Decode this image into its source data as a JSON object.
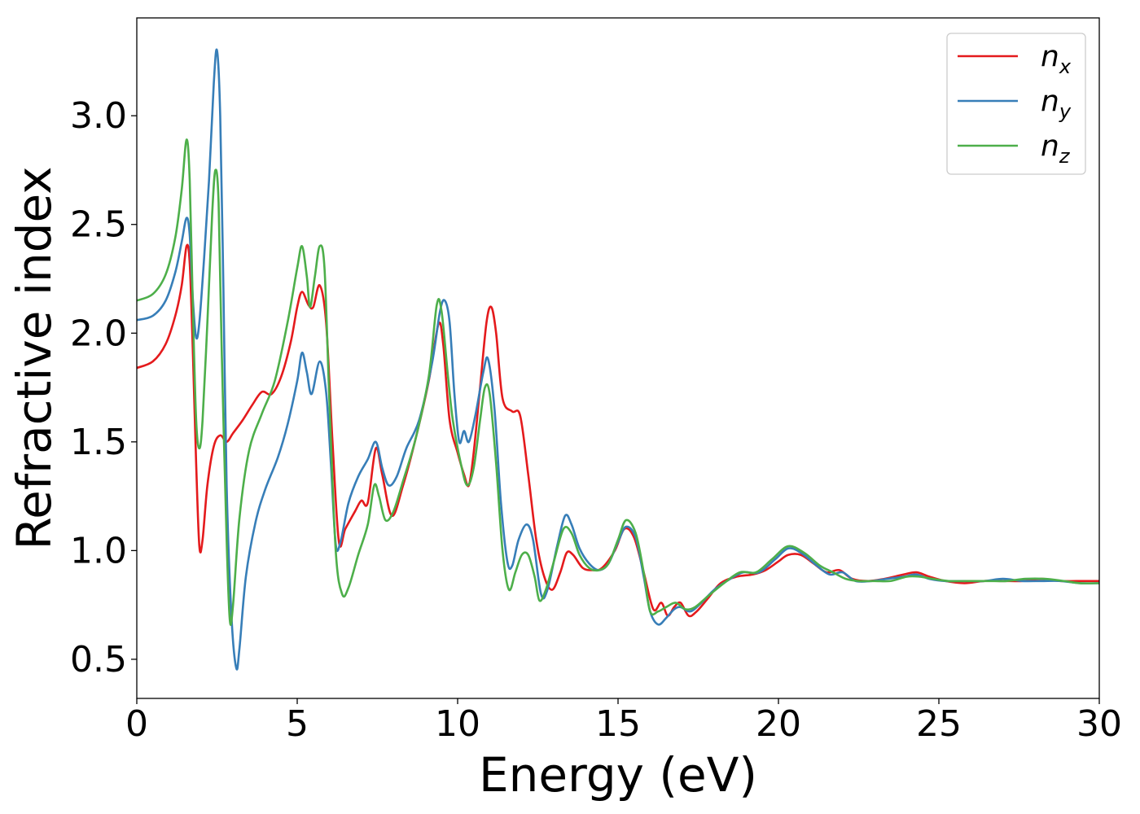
{
  "chart_data": {
    "type": "line",
    "title": "",
    "xlabel": "Energy (eV)",
    "ylabel": "Refractive index",
    "xlim": [
      0,
      30
    ],
    "ylim": [
      0.32,
      3.45
    ],
    "xticks": [
      0,
      5,
      10,
      15,
      20,
      25,
      30
    ],
    "xtick_labels": [
      "0",
      "5",
      "10",
      "15",
      "20",
      "25",
      "30"
    ],
    "yticks": [
      0.5,
      1.0,
      1.5,
      2.0,
      2.5,
      3.0
    ],
    "ytick_labels": [
      "0.5",
      "1.0",
      "1.5",
      "2.0",
      "2.5",
      "3.0"
    ],
    "grid": false,
    "legend_position": "upper-right",
    "series": [
      {
        "name": "n",
        "subscript": "x",
        "color": "#e41a1c",
        "points": [
          [
            0,
            1.84
          ],
          [
            0.5,
            1.87
          ],
          [
            0.9,
            1.95
          ],
          [
            1.2,
            2.08
          ],
          [
            1.4,
            2.22
          ],
          [
            1.55,
            2.4
          ],
          [
            1.65,
            2.32
          ],
          [
            1.75,
            1.9
          ],
          [
            1.85,
            1.4
          ],
          [
            1.95,
            1.02
          ],
          [
            2.05,
            1.05
          ],
          [
            2.2,
            1.3
          ],
          [
            2.4,
            1.48
          ],
          [
            2.6,
            1.53
          ],
          [
            2.8,
            1.5
          ],
          [
            3.0,
            1.54
          ],
          [
            3.3,
            1.6
          ],
          [
            3.6,
            1.67
          ],
          [
            3.9,
            1.73
          ],
          [
            4.2,
            1.72
          ],
          [
            4.5,
            1.8
          ],
          [
            4.8,
            1.96
          ],
          [
            5.0,
            2.12
          ],
          [
            5.15,
            2.19
          ],
          [
            5.35,
            2.13
          ],
          [
            5.5,
            2.12
          ],
          [
            5.7,
            2.22
          ],
          [
            5.9,
            2.05
          ],
          [
            6.1,
            1.5
          ],
          [
            6.3,
            1.04
          ],
          [
            6.5,
            1.1
          ],
          [
            6.8,
            1.18
          ],
          [
            7.0,
            1.23
          ],
          [
            7.2,
            1.22
          ],
          [
            7.45,
            1.47
          ],
          [
            7.65,
            1.35
          ],
          [
            7.95,
            1.16
          ],
          [
            8.3,
            1.3
          ],
          [
            8.7,
            1.52
          ],
          [
            9.1,
            1.78
          ],
          [
            9.4,
            2.04
          ],
          [
            9.55,
            1.95
          ],
          [
            9.75,
            1.6
          ],
          [
            10.0,
            1.45
          ],
          [
            10.2,
            1.35
          ],
          [
            10.35,
            1.3
          ],
          [
            10.5,
            1.45
          ],
          [
            10.7,
            1.75
          ],
          [
            10.9,
            2.05
          ],
          [
            11.05,
            2.12
          ],
          [
            11.2,
            2.0
          ],
          [
            11.4,
            1.7
          ],
          [
            11.7,
            1.64
          ],
          [
            11.95,
            1.62
          ],
          [
            12.2,
            1.35
          ],
          [
            12.45,
            1.05
          ],
          [
            12.7,
            0.88
          ],
          [
            12.95,
            0.82
          ],
          [
            13.2,
            0.9
          ],
          [
            13.4,
            0.99
          ],
          [
            13.6,
            0.98
          ],
          [
            13.9,
            0.92
          ],
          [
            14.2,
            0.91
          ],
          [
            14.5,
            0.92
          ],
          [
            14.9,
            1.0
          ],
          [
            15.2,
            1.1
          ],
          [
            15.5,
            1.06
          ],
          [
            15.8,
            0.9
          ],
          [
            16.1,
            0.73
          ],
          [
            16.35,
            0.76
          ],
          [
            16.55,
            0.7
          ],
          [
            16.75,
            0.74
          ],
          [
            16.95,
            0.76
          ],
          [
            17.2,
            0.7
          ],
          [
            17.45,
            0.72
          ],
          [
            17.8,
            0.78
          ],
          [
            18.2,
            0.85
          ],
          [
            18.7,
            0.88
          ],
          [
            19.2,
            0.89
          ],
          [
            19.6,
            0.91
          ],
          [
            20.0,
            0.95
          ],
          [
            20.3,
            0.98
          ],
          [
            20.7,
            0.98
          ],
          [
            21.1,
            0.94
          ],
          [
            21.5,
            0.9
          ],
          [
            21.9,
            0.91
          ],
          [
            22.3,
            0.87
          ],
          [
            22.8,
            0.86
          ],
          [
            23.3,
            0.87
          ],
          [
            23.9,
            0.89
          ],
          [
            24.3,
            0.9
          ],
          [
            24.7,
            0.88
          ],
          [
            25.2,
            0.86
          ],
          [
            25.8,
            0.85
          ],
          [
            26.4,
            0.86
          ],
          [
            27.0,
            0.86
          ],
          [
            27.6,
            0.86
          ],
          [
            28.2,
            0.87
          ],
          [
            28.8,
            0.86
          ],
          [
            29.3,
            0.86
          ],
          [
            30,
            0.86
          ]
        ]
      },
      {
        "name": "n",
        "subscript": "y",
        "color": "#377eb8",
        "points": [
          [
            0,
            2.06
          ],
          [
            0.5,
            2.08
          ],
          [
            0.9,
            2.15
          ],
          [
            1.2,
            2.28
          ],
          [
            1.4,
            2.42
          ],
          [
            1.55,
            2.53
          ],
          [
            1.65,
            2.45
          ],
          [
            1.75,
            2.15
          ],
          [
            1.85,
            1.98
          ],
          [
            1.95,
            2.05
          ],
          [
            2.1,
            2.35
          ],
          [
            2.25,
            2.7
          ],
          [
            2.4,
            3.15
          ],
          [
            2.5,
            3.3
          ],
          [
            2.6,
            3.0
          ],
          [
            2.7,
            2.2
          ],
          [
            2.8,
            1.3
          ],
          [
            2.95,
            0.7
          ],
          [
            3.1,
            0.46
          ],
          [
            3.2,
            0.55
          ],
          [
            3.4,
            0.88
          ],
          [
            3.7,
            1.13
          ],
          [
            4.0,
            1.28
          ],
          [
            4.4,
            1.43
          ],
          [
            4.7,
            1.58
          ],
          [
            5.0,
            1.78
          ],
          [
            5.15,
            1.91
          ],
          [
            5.3,
            1.82
          ],
          [
            5.45,
            1.72
          ],
          [
            5.7,
            1.87
          ],
          [
            5.9,
            1.73
          ],
          [
            6.05,
            1.4
          ],
          [
            6.2,
            1.03
          ],
          [
            6.35,
            1.04
          ],
          [
            6.6,
            1.22
          ],
          [
            6.9,
            1.34
          ],
          [
            7.2,
            1.42
          ],
          [
            7.45,
            1.5
          ],
          [
            7.65,
            1.38
          ],
          [
            7.85,
            1.3
          ],
          [
            8.1,
            1.34
          ],
          [
            8.4,
            1.47
          ],
          [
            8.8,
            1.6
          ],
          [
            9.2,
            1.86
          ],
          [
            9.45,
            2.1
          ],
          [
            9.6,
            2.15
          ],
          [
            9.75,
            2.05
          ],
          [
            9.9,
            1.72
          ],
          [
            10.05,
            1.5
          ],
          [
            10.2,
            1.55
          ],
          [
            10.35,
            1.5
          ],
          [
            10.55,
            1.62
          ],
          [
            10.8,
            1.82
          ],
          [
            10.95,
            1.88
          ],
          [
            11.15,
            1.65
          ],
          [
            11.35,
            1.22
          ],
          [
            11.55,
            0.95
          ],
          [
            11.7,
            0.93
          ],
          [
            11.9,
            1.05
          ],
          [
            12.15,
            1.12
          ],
          [
            12.35,
            1.05
          ],
          [
            12.6,
            0.8
          ],
          [
            12.8,
            0.82
          ],
          [
            13.1,
            1.02
          ],
          [
            13.35,
            1.16
          ],
          [
            13.55,
            1.12
          ],
          [
            13.8,
            1.01
          ],
          [
            14.1,
            0.94
          ],
          [
            14.4,
            0.91
          ],
          [
            14.7,
            0.94
          ],
          [
            15.0,
            1.04
          ],
          [
            15.25,
            1.11
          ],
          [
            15.55,
            1.06
          ],
          [
            15.8,
            0.88
          ],
          [
            16.0,
            0.72
          ],
          [
            16.25,
            0.66
          ],
          [
            16.5,
            0.69
          ],
          [
            16.75,
            0.73
          ],
          [
            16.95,
            0.74
          ],
          [
            17.25,
            0.72
          ],
          [
            17.6,
            0.76
          ],
          [
            18.0,
            0.82
          ],
          [
            18.5,
            0.87
          ],
          [
            18.9,
            0.9
          ],
          [
            19.4,
            0.9
          ],
          [
            19.9,
            0.96
          ],
          [
            20.3,
            1.01
          ],
          [
            20.7,
            0.99
          ],
          [
            21.2,
            0.93
          ],
          [
            21.6,
            0.89
          ],
          [
            22.0,
            0.9
          ],
          [
            22.4,
            0.86
          ],
          [
            22.9,
            0.86
          ],
          [
            23.4,
            0.87
          ],
          [
            23.9,
            0.88
          ],
          [
            24.3,
            0.89
          ],
          [
            24.7,
            0.87
          ],
          [
            25.2,
            0.86
          ],
          [
            25.8,
            0.86
          ],
          [
            26.4,
            0.86
          ],
          [
            27.0,
            0.87
          ],
          [
            27.6,
            0.86
          ],
          [
            28.2,
            0.86
          ],
          [
            28.8,
            0.86
          ],
          [
            29.4,
            0.85
          ],
          [
            30,
            0.85
          ]
        ]
      },
      {
        "name": "n",
        "subscript": "z",
        "color": "#4daf4a",
        "points": [
          [
            0,
            2.15
          ],
          [
            0.5,
            2.18
          ],
          [
            0.9,
            2.27
          ],
          [
            1.2,
            2.44
          ],
          [
            1.4,
            2.66
          ],
          [
            1.55,
            2.89
          ],
          [
            1.65,
            2.7
          ],
          [
            1.75,
            2.1
          ],
          [
            1.85,
            1.6
          ],
          [
            1.95,
            1.47
          ],
          [
            2.05,
            1.6
          ],
          [
            2.2,
            2.05
          ],
          [
            2.35,
            2.55
          ],
          [
            2.45,
            2.75
          ],
          [
            2.55,
            2.6
          ],
          [
            2.65,
            1.9
          ],
          [
            2.8,
            1.05
          ],
          [
            2.9,
            0.68
          ],
          [
            3.0,
            0.75
          ],
          [
            3.2,
            1.15
          ],
          [
            3.5,
            1.46
          ],
          [
            3.9,
            1.63
          ],
          [
            4.3,
            1.78
          ],
          [
            4.7,
            2.05
          ],
          [
            5.0,
            2.3
          ],
          [
            5.15,
            2.4
          ],
          [
            5.3,
            2.26
          ],
          [
            5.4,
            2.12
          ],
          [
            5.55,
            2.26
          ],
          [
            5.7,
            2.4
          ],
          [
            5.85,
            2.3
          ],
          [
            6.0,
            1.7
          ],
          [
            6.2,
            1.0
          ],
          [
            6.4,
            0.8
          ],
          [
            6.6,
            0.83
          ],
          [
            6.9,
            0.98
          ],
          [
            7.2,
            1.12
          ],
          [
            7.4,
            1.3
          ],
          [
            7.55,
            1.25
          ],
          [
            7.75,
            1.14
          ],
          [
            8.0,
            1.18
          ],
          [
            8.3,
            1.32
          ],
          [
            8.7,
            1.52
          ],
          [
            9.1,
            1.8
          ],
          [
            9.35,
            2.13
          ],
          [
            9.5,
            2.1
          ],
          [
            9.7,
            1.8
          ],
          [
            9.85,
            1.6
          ],
          [
            10.1,
            1.4
          ],
          [
            10.3,
            1.3
          ],
          [
            10.5,
            1.38
          ],
          [
            10.7,
            1.6
          ],
          [
            10.85,
            1.75
          ],
          [
            11.0,
            1.72
          ],
          [
            11.2,
            1.4
          ],
          [
            11.4,
            1.0
          ],
          [
            11.6,
            0.82
          ],
          [
            11.8,
            0.9
          ],
          [
            12.0,
            0.98
          ],
          [
            12.2,
            0.98
          ],
          [
            12.4,
            0.88
          ],
          [
            12.55,
            0.77
          ],
          [
            12.75,
            0.82
          ],
          [
            13.0,
            0.95
          ],
          [
            13.3,
            1.1
          ],
          [
            13.55,
            1.08
          ],
          [
            13.8,
            0.98
          ],
          [
            14.1,
            0.92
          ],
          [
            14.4,
            0.91
          ],
          [
            14.7,
            0.94
          ],
          [
            15.0,
            1.05
          ],
          [
            15.25,
            1.14
          ],
          [
            15.55,
            1.08
          ],
          [
            15.8,
            0.9
          ],
          [
            16.0,
            0.72
          ],
          [
            16.25,
            0.72
          ],
          [
            16.5,
            0.74
          ],
          [
            16.8,
            0.76
          ],
          [
            17.1,
            0.73
          ],
          [
            17.4,
            0.74
          ],
          [
            17.8,
            0.79
          ],
          [
            18.3,
            0.85
          ],
          [
            18.8,
            0.9
          ],
          [
            19.3,
            0.9
          ],
          [
            19.8,
            0.96
          ],
          [
            20.3,
            1.02
          ],
          [
            20.8,
            0.99
          ],
          [
            21.3,
            0.93
          ],
          [
            21.7,
            0.9
          ],
          [
            22.1,
            0.87
          ],
          [
            22.5,
            0.86
          ],
          [
            23.0,
            0.86
          ],
          [
            23.5,
            0.86
          ],
          [
            24.0,
            0.88
          ],
          [
            24.4,
            0.88
          ],
          [
            24.8,
            0.87
          ],
          [
            25.3,
            0.86
          ],
          [
            25.9,
            0.86
          ],
          [
            26.5,
            0.86
          ],
          [
            27.1,
            0.86
          ],
          [
            27.7,
            0.87
          ],
          [
            28.3,
            0.87
          ],
          [
            28.9,
            0.86
          ],
          [
            29.4,
            0.85
          ],
          [
            30,
            0.85
          ]
        ]
      }
    ]
  }
}
